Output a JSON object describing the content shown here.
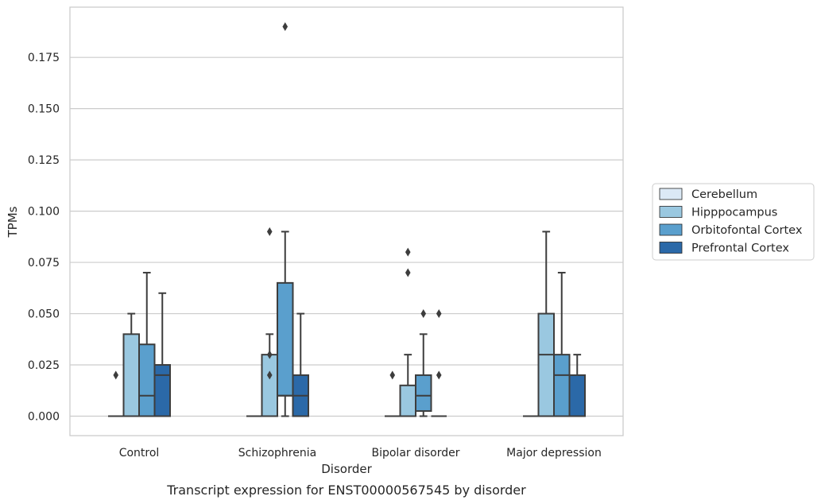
{
  "chart_data": {
    "type": "box",
    "title": "",
    "caption": "Transcript expression for ENST00000567545 by disorder",
    "xlabel": "Disorder",
    "ylabel": "TPMs",
    "ylim": [
      -0.0095,
      0.1995
    ],
    "yticks": [
      0.0,
      0.025,
      0.05,
      0.075,
      0.1,
      0.125,
      0.15,
      0.175
    ],
    "ytick_labels": [
      "0.000",
      "0.025",
      "0.050",
      "0.075",
      "0.100",
      "0.125",
      "0.150",
      "0.175"
    ],
    "grid": true,
    "legend_position": "right",
    "categories": [
      "Control",
      "Schizophrenia",
      "Bipolar disorder",
      "Major depression"
    ],
    "series": [
      {
        "name": "Cerebellum",
        "color": "#dbe9f6",
        "boxes": [
          {
            "whislo": 0,
            "q1": 0,
            "med": 0,
            "q3": 0,
            "whishi": 0,
            "fliers": [
              0.02
            ]
          },
          {
            "whislo": 0,
            "q1": 0,
            "med": 0,
            "q3": 0,
            "whishi": 0,
            "fliers": []
          },
          {
            "whislo": 0,
            "q1": 0,
            "med": 0,
            "q3": 0,
            "whishi": 0,
            "fliers": [
              0.02
            ]
          },
          {
            "whislo": 0,
            "q1": 0,
            "med": 0,
            "q3": 0,
            "whishi": 0,
            "fliers": []
          }
        ]
      },
      {
        "name": "Hipppocampus",
        "color": "#9ac8e0",
        "boxes": [
          {
            "whislo": 0,
            "q1": 0,
            "med": 0,
            "q3": 0.04,
            "whishi": 0.05,
            "fliers": []
          },
          {
            "whislo": 0,
            "q1": 0,
            "med": 0,
            "q3": 0.03,
            "whishi": 0.04,
            "fliers": [
              0.02,
              0.03,
              0.09
            ]
          },
          {
            "whislo": 0,
            "q1": 0,
            "med": 0,
            "q3": 0.015,
            "whishi": 0.03,
            "fliers": [
              0.07,
              0.08
            ]
          },
          {
            "whislo": 0,
            "q1": 0,
            "med": 0.03,
            "q3": 0.05,
            "whishi": 0.09,
            "fliers": []
          }
        ]
      },
      {
        "name": "Orbitofontal Cortex",
        "color": "#5a9fcd",
        "boxes": [
          {
            "whislo": 0,
            "q1": 0,
            "med": 0.01,
            "q3": 0.035,
            "whishi": 0.07,
            "fliers": []
          },
          {
            "whislo": 0,
            "q1": 0.01,
            "med": 0.01,
            "q3": 0.065,
            "whishi": 0.09,
            "fliers": [
              0.19
            ]
          },
          {
            "whislo": 0,
            "q1": 0.0025,
            "med": 0.01,
            "q3": 0.02,
            "whishi": 0.04,
            "fliers": [
              0.05
            ]
          },
          {
            "whislo": 0,
            "q1": 0,
            "med": 0.02,
            "q3": 0.03,
            "whishi": 0.07,
            "fliers": []
          }
        ]
      },
      {
        "name": "Prefrontal Cortex",
        "color": "#2b69a8",
        "boxes": [
          {
            "whislo": 0,
            "q1": 0,
            "med": 0.02,
            "q3": 0.025,
            "whishi": 0.06,
            "fliers": []
          },
          {
            "whislo": 0,
            "q1": 0,
            "med": 0.01,
            "q3": 0.02,
            "whishi": 0.05,
            "fliers": []
          },
          {
            "whislo": 0,
            "q1": 0,
            "med": 0,
            "q3": 0,
            "whishi": 0,
            "fliers": [
              0.02,
              0.05
            ]
          },
          {
            "whislo": 0,
            "q1": 0,
            "med": 0,
            "q3": 0.02,
            "whishi": 0.03,
            "fliers": []
          }
        ]
      }
    ]
  }
}
